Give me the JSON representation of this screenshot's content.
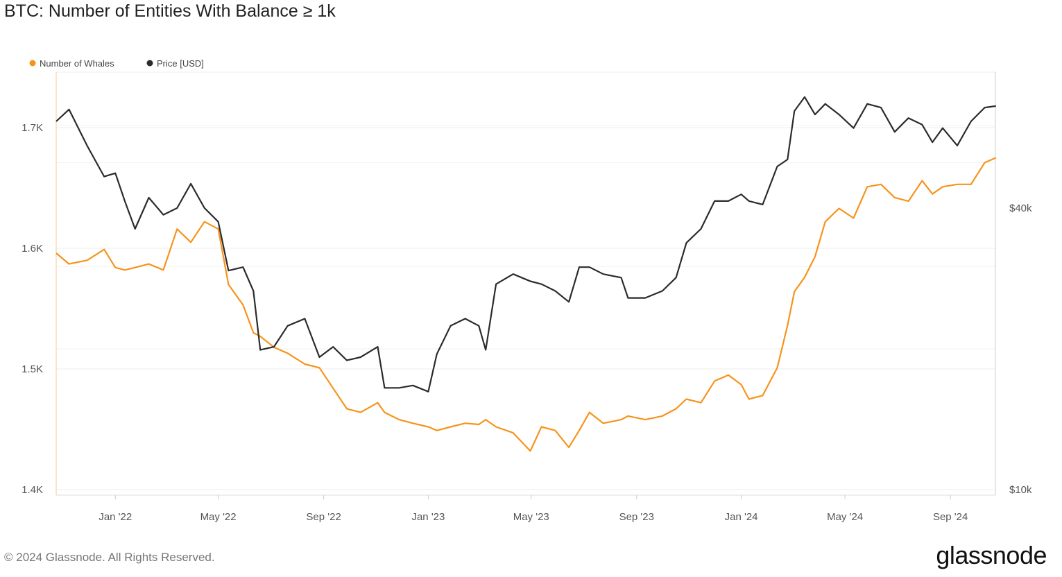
{
  "title": "BTC: Number of Entities With Balance ≥ 1k",
  "footer": "© 2024 Glassnode. All Rights Reserved.",
  "logo": "glassnode",
  "chart_data": {
    "type": "line",
    "title": "BTC: Number of Entities With Balance ≥ 1k",
    "x_start_date": "2021-10-24",
    "x_unit": "days since start",
    "x_days": [
      0,
      15,
      36,
      56,
      69,
      80,
      92,
      108,
      125,
      141,
      157,
      173,
      189,
      201,
      218,
      230,
      238,
      254,
      270,
      290,
      307,
      323,
      339,
      355,
      375,
      383,
      400,
      416,
      434,
      444,
      460,
      477,
      493,
      501,
      513,
      533,
      553,
      566,
      582,
      598,
      610,
      622,
      638,
      659,
      667,
      687,
      707,
      723,
      735,
      752,
      768,
      784,
      799,
      808,
      824,
      841,
      853,
      861,
      873,
      885,
      897,
      913,
      930,
      946,
      962,
      978,
      994,
      1010,
      1022,
      1034,
      1051,
      1067,
      1083,
      1096
    ],
    "series": [
      {
        "name": "Number of Whales",
        "axis": "left",
        "color": "#f7931a",
        "values": [
          1596,
          1587,
          1590,
          1599,
          1584,
          1582,
          1584,
          1587,
          1582,
          1616,
          1605,
          1622,
          1616,
          1570,
          1553,
          1530,
          1527,
          1518,
          1513,
          1504,
          1501,
          1484,
          1467,
          1464,
          1472,
          1464,
          1458,
          1455,
          1452,
          1449,
          1452,
          1455,
          1454,
          1458,
          1452,
          1447,
          1432,
          1452,
          1449,
          1435,
          1449,
          1464,
          1455,
          1458,
          1461,
          1458,
          1461,
          1467,
          1475,
          1472,
          1490,
          1495,
          1487,
          1475,
          1478,
          1501,
          1536,
          1564,
          1576,
          1593,
          1622,
          1633,
          1625,
          1651,
          1653,
          1642,
          1639,
          1656,
          1645,
          1651,
          1653,
          1653,
          1671,
          1675
        ]
      },
      {
        "name": "Price [USD]",
        "axis": "right",
        "color": "#2b2b2b",
        "values": [
          61300,
          65000,
          54400,
          46700,
          47500,
          41400,
          36100,
          42100,
          38700,
          40000,
          45100,
          40000,
          37400,
          29400,
          29900,
          26600,
          19900,
          20200,
          22400,
          23200,
          19200,
          20200,
          18900,
          19200,
          20200,
          16500,
          16500,
          16700,
          16200,
          19500,
          22400,
          23200,
          22400,
          19900,
          27500,
          28900,
          27900,
          27500,
          26600,
          25200,
          29900,
          29900,
          28900,
          28400,
          25700,
          25700,
          26600,
          28400,
          33700,
          36100,
          41400,
          41400,
          42800,
          41400,
          40700,
          49100,
          50800,
          64500,
          69100,
          63400,
          66800,
          63400,
          59300,
          66800,
          65600,
          58200,
          62300,
          60300,
          55300,
          59300,
          54400,
          61300,
          65600,
          66100
        ]
      }
    ],
    "x_ticks": [
      {
        "label": "Jan '22",
        "day": 69
      },
      {
        "label": "May '22",
        "day": 189
      },
      {
        "label": "Sep '22",
        "day": 312
      },
      {
        "label": "Jan '23",
        "day": 434
      },
      {
        "label": "May '23",
        "day": 554
      },
      {
        "label": "Sep '23",
        "day": 677
      },
      {
        "label": "Jan '24",
        "day": 799
      },
      {
        "label": "May '24",
        "day": 920
      },
      {
        "label": "Sep '24",
        "day": 1043
      }
    ],
    "left_axis": {
      "ticks": [
        {
          "label": "1.4K",
          "value": 1400
        },
        {
          "label": "1.5K",
          "value": 1500
        },
        {
          "label": "1.6K",
          "value": 1600
        },
        {
          "label": "1.7K",
          "value": 1700
        }
      ],
      "range": [
        1400,
        1750
      ]
    },
    "right_axis": {
      "scale": "log",
      "ticks": [
        {
          "label": "$10k",
          "value": 10000
        },
        {
          "label": "$40k",
          "value": 40000
        }
      ]
    },
    "legend": {
      "placement": "top-left",
      "entries": [
        "Number of Whales",
        "Price [USD]"
      ]
    },
    "grid": true
  }
}
